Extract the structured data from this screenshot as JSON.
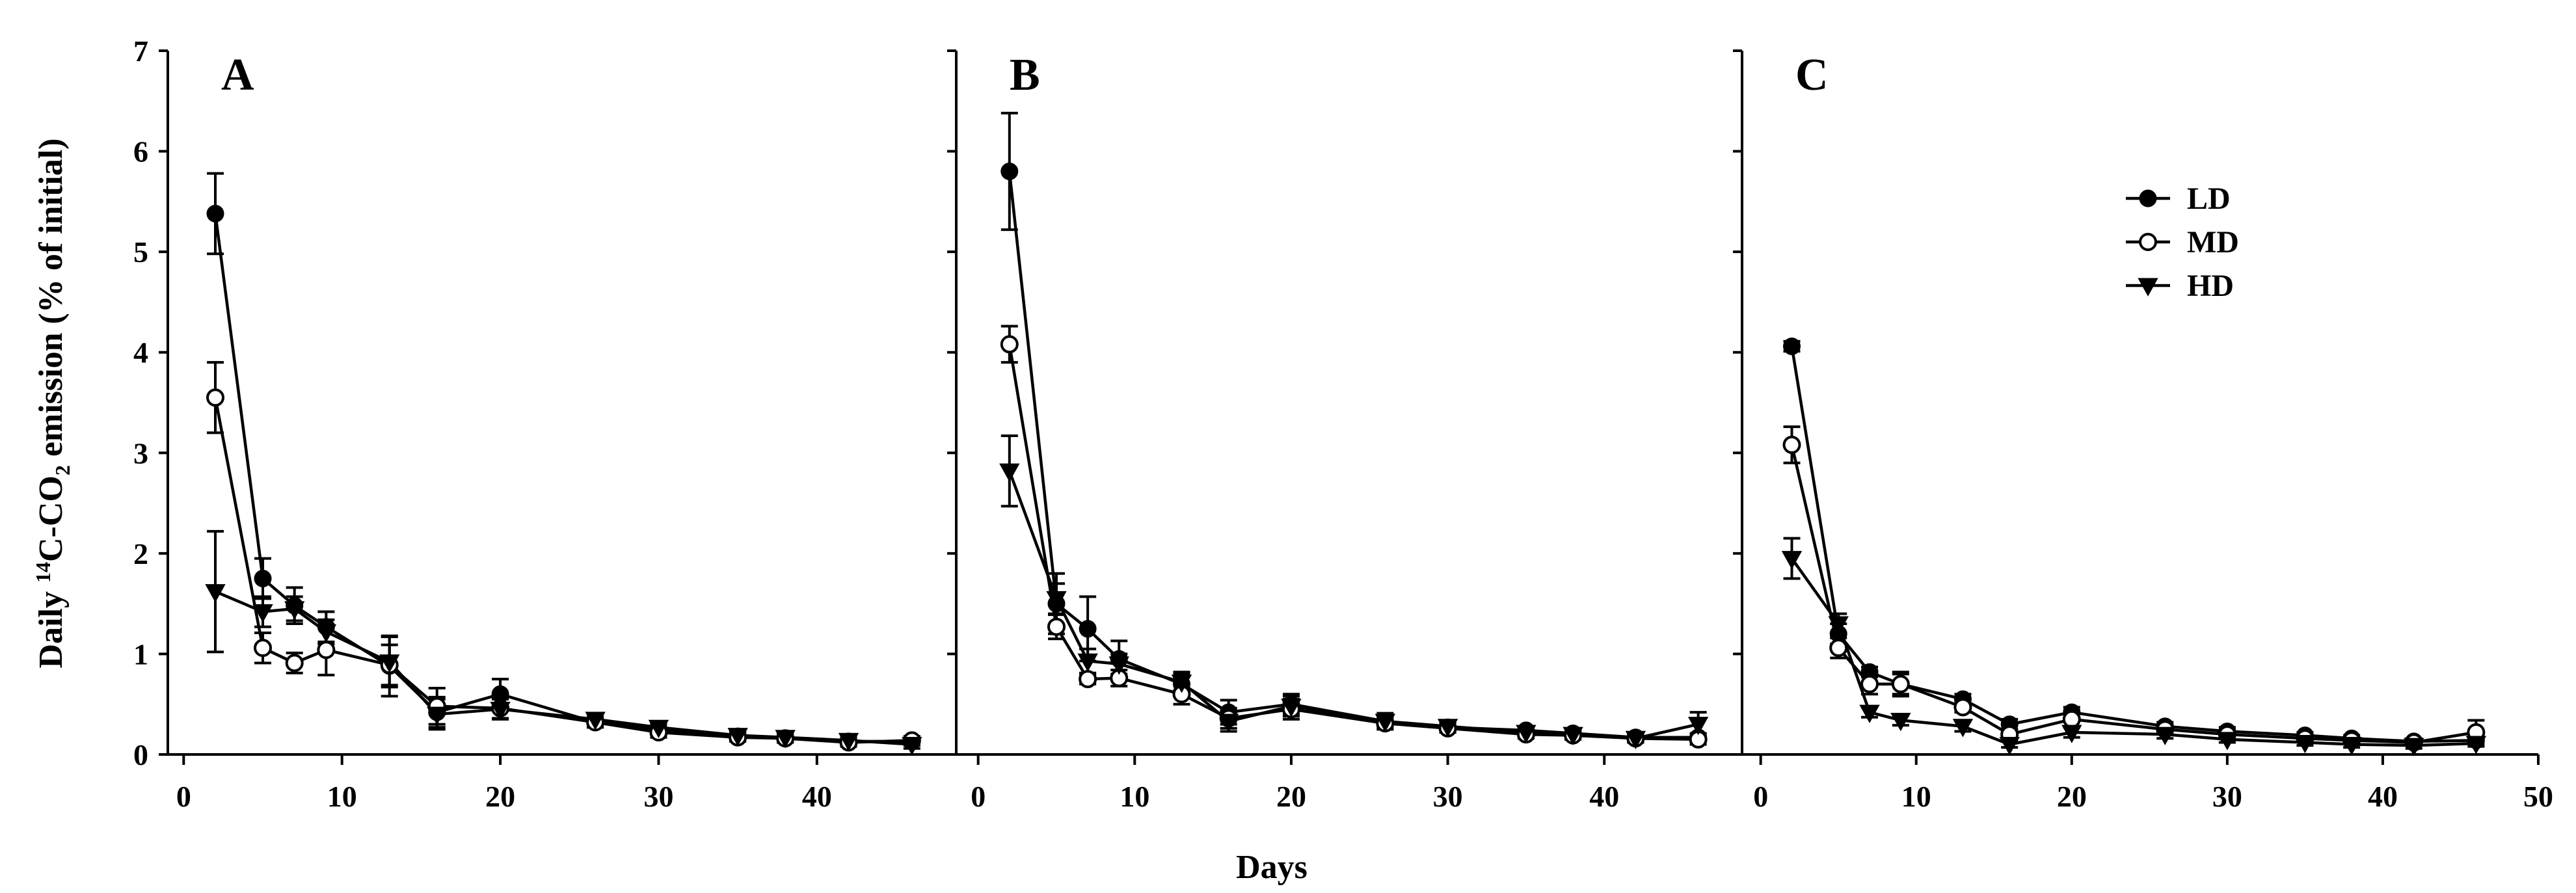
{
  "chart_data": {
    "type": "line",
    "ylabel_prefix": "Daily ",
    "ylabel_sup": "14",
    "ylabel_mid": "C-CO",
    "ylabel_sub": "2",
    "ylabel_suffix": " emission (% of initial)",
    "xlabel": "Days",
    "ylim": [
      0,
      7
    ],
    "yticks": [
      "0",
      "1",
      "2",
      "3",
      "4",
      "5",
      "6",
      "7"
    ],
    "legend": [
      {
        "name": "LD",
        "marker": "filled-circle"
      },
      {
        "name": "MD",
        "marker": "open-circle"
      },
      {
        "name": "HD",
        "marker": "filled-triangle-down"
      }
    ],
    "panels": [
      {
        "label": "A",
        "xlim": [
          -1,
          48.8
        ],
        "xticks": [
          "0",
          "10",
          "20",
          "30",
          "40"
        ],
        "series": [
          {
            "name": "LD",
            "x": [
              2,
              5,
              7,
              9,
              13,
              16,
              20,
              26,
              30,
              35,
              38,
              42,
              46
            ],
            "y": [
              5.38,
              1.75,
              1.48,
              1.27,
              0.88,
              0.42,
              0.6,
              0.32,
              0.25,
              0.18,
              0.16,
              0.13,
              0.13
            ],
            "err": [
              0.4,
              0.2,
              0.18,
              0.15,
              0.3,
              0.15,
              0.15,
              0.05,
              0.05,
              0.04,
              0.04,
              0.04,
              0.04
            ]
          },
          {
            "name": "MD",
            "x": [
              2,
              5,
              7,
              9,
              13,
              16,
              20,
              26,
              30,
              35,
              38,
              42,
              46
            ],
            "y": [
              3.55,
              1.06,
              0.91,
              1.04,
              0.89,
              0.48,
              0.46,
              0.32,
              0.22,
              0.17,
              0.16,
              0.12,
              0.14
            ],
            "err": [
              0.35,
              0.15,
              0.1,
              0.25,
              0.2,
              0.18,
              0.1,
              0.05,
              0.05,
              0.04,
              0.04,
              0.04,
              0.04
            ]
          },
          {
            "name": "HD",
            "x": [
              2,
              5,
              7,
              9,
              13,
              16,
              20,
              26,
              30,
              35,
              38,
              42,
              46
            ],
            "y": [
              1.62,
              1.42,
              1.45,
              1.22,
              0.92,
              0.4,
              0.45,
              0.35,
              0.27,
              0.19,
              0.17,
              0.14,
              0.1
            ],
            "err": [
              0.6,
              0.15,
              0.12,
              0.12,
              0.25,
              0.15,
              0.1,
              0.05,
              0.05,
              0.04,
              0.04,
              0.04,
              0.04
            ]
          }
        ]
      },
      {
        "label": "B",
        "xlim": [
          -1.4,
          48.8
        ],
        "xticks": [
          "0",
          "10",
          "20",
          "30",
          "40"
        ],
        "series": [
          {
            "name": "LD",
            "x": [
              2,
              5,
              7,
              9,
              13,
              16,
              20,
              26,
              30,
              35,
              38,
              42,
              46
            ],
            "y": [
              5.8,
              1.5,
              1.25,
              0.95,
              0.7,
              0.42,
              0.5,
              0.33,
              0.27,
              0.24,
              0.21,
              0.17,
              0.17
            ],
            "err": [
              0.58,
              0.3,
              0.32,
              0.18,
              0.12,
              0.12,
              0.1,
              0.08,
              0.05,
              0.04,
              0.04,
              0.04,
              0.04
            ]
          },
          {
            "name": "MD",
            "x": [
              2,
              5,
              7,
              9,
              13,
              16,
              20,
              26,
              30,
              35,
              38,
              42,
              46
            ],
            "y": [
              4.08,
              1.27,
              0.75,
              0.76,
              0.6,
              0.36,
              0.45,
              0.31,
              0.26,
              0.2,
              0.19,
              0.16,
              0.15
            ],
            "err": [
              0.18,
              0.12,
              0.05,
              0.08,
              0.1,
              0.1,
              0.1,
              0.05,
              0.04,
              0.04,
              0.04,
              0.04,
              0.05
            ]
          },
          {
            "name": "HD",
            "x": [
              2,
              5,
              7,
              9,
              13,
              16,
              20,
              26,
              30,
              35,
              38,
              42,
              46
            ],
            "y": [
              2.82,
              1.55,
              0.93,
              0.9,
              0.72,
              0.33,
              0.48,
              0.33,
              0.28,
              0.22,
              0.2,
              0.16,
              0.3
            ],
            "err": [
              0.35,
              0.15,
              0.12,
              0.1,
              0.08,
              0.1,
              0.1,
              0.05,
              0.04,
              0.04,
              0.04,
              0.04,
              0.12
            ]
          }
        ]
      },
      {
        "label": "C",
        "xlim": [
          -1.2,
          50
        ],
        "xticks": [
          "0",
          "10",
          "20",
          "30",
          "40",
          "50"
        ],
        "series": [
          {
            "name": "LD",
            "x": [
              2,
              5,
              7,
              9,
              13,
              16,
              20,
              26,
              30,
              35,
              38,
              42,
              46
            ],
            "y": [
              4.06,
              1.2,
              0.82,
              0.7,
              0.55,
              0.3,
              0.42,
              0.28,
              0.23,
              0.19,
              0.16,
              0.13,
              0.14
            ],
            "err": [
              0.05,
              0.1,
              0.05,
              0.1,
              0.05,
              0.05,
              0.05,
              0.04,
              0.04,
              0.03,
              0.03,
              0.03,
              0.03
            ]
          },
          {
            "name": "MD",
            "x": [
              2,
              5,
              7,
              9,
              13,
              16,
              20,
              26,
              30,
              35,
              38,
              42,
              46
            ],
            "y": [
              3.08,
              1.06,
              0.7,
              0.7,
              0.47,
              0.2,
              0.35,
              0.25,
              0.2,
              0.16,
              0.14,
              0.12,
              0.22
            ],
            "err": [
              0.18,
              0.1,
              0.1,
              0.12,
              0.05,
              0.05,
              0.08,
              0.04,
              0.04,
              0.03,
              0.03,
              0.03,
              0.12
            ]
          },
          {
            "name": "HD",
            "x": [
              2,
              5,
              7,
              9,
              13,
              16,
              20,
              26,
              30,
              35,
              38,
              42,
              46
            ],
            "y": [
              1.95,
              1.3,
              0.42,
              0.34,
              0.28,
              0.1,
              0.22,
              0.2,
              0.15,
              0.12,
              0.1,
              0.09,
              0.11
            ],
            "err": [
              0.2,
              0.1,
              0.05,
              0.05,
              0.05,
              0.03,
              0.05,
              0.04,
              0.03,
              0.03,
              0.03,
              0.03,
              0.03
            ]
          }
        ]
      }
    ]
  }
}
